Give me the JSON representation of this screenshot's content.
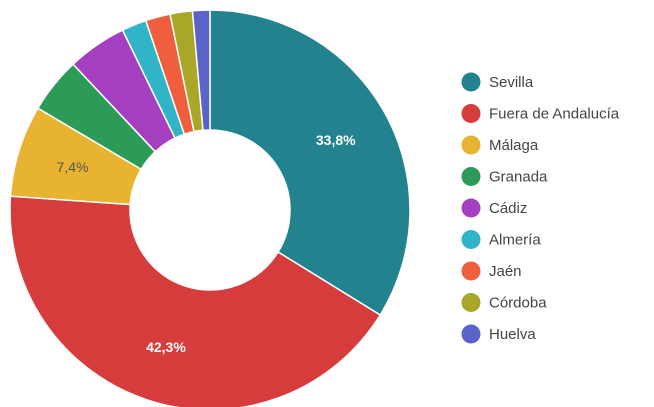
{
  "chart_data": {
    "type": "pie",
    "donut": true,
    "legend_position": "right",
    "slices": [
      {
        "name": "Sevilla",
        "value": 33.8,
        "color": "#22838f",
        "label": "33,8%",
        "label_color": "#ffffff"
      },
      {
        "name": "Fuera de Andalucía",
        "value": 42.3,
        "color": "#d63c3c",
        "label": "42,3%",
        "label_color": "#ffffff"
      },
      {
        "name": "Málaga",
        "value": 7.4,
        "color": "#e8b330",
        "label": "7,4%",
        "label_color": "#555555"
      },
      {
        "name": "Granada",
        "value": 4.5,
        "color": "#2c9b57",
        "label": "",
        "label_color": "#ffffff"
      },
      {
        "name": "Cádiz",
        "value": 4.8,
        "color": "#a43fc0",
        "label": "",
        "label_color": "#ffffff"
      },
      {
        "name": "Almería",
        "value": 2.0,
        "color": "#2fb5c7",
        "label": "",
        "label_color": "#ffffff"
      },
      {
        "name": "Jaén",
        "value": 2.0,
        "color": "#f05f3d",
        "label": "",
        "label_color": "#ffffff"
      },
      {
        "name": "Córdoba",
        "value": 1.8,
        "color": "#aaa628",
        "label": "",
        "label_color": "#ffffff"
      },
      {
        "name": "Huelva",
        "value": 1.4,
        "color": "#5a64c8",
        "label": "",
        "label_color": "#ffffff"
      }
    ]
  }
}
